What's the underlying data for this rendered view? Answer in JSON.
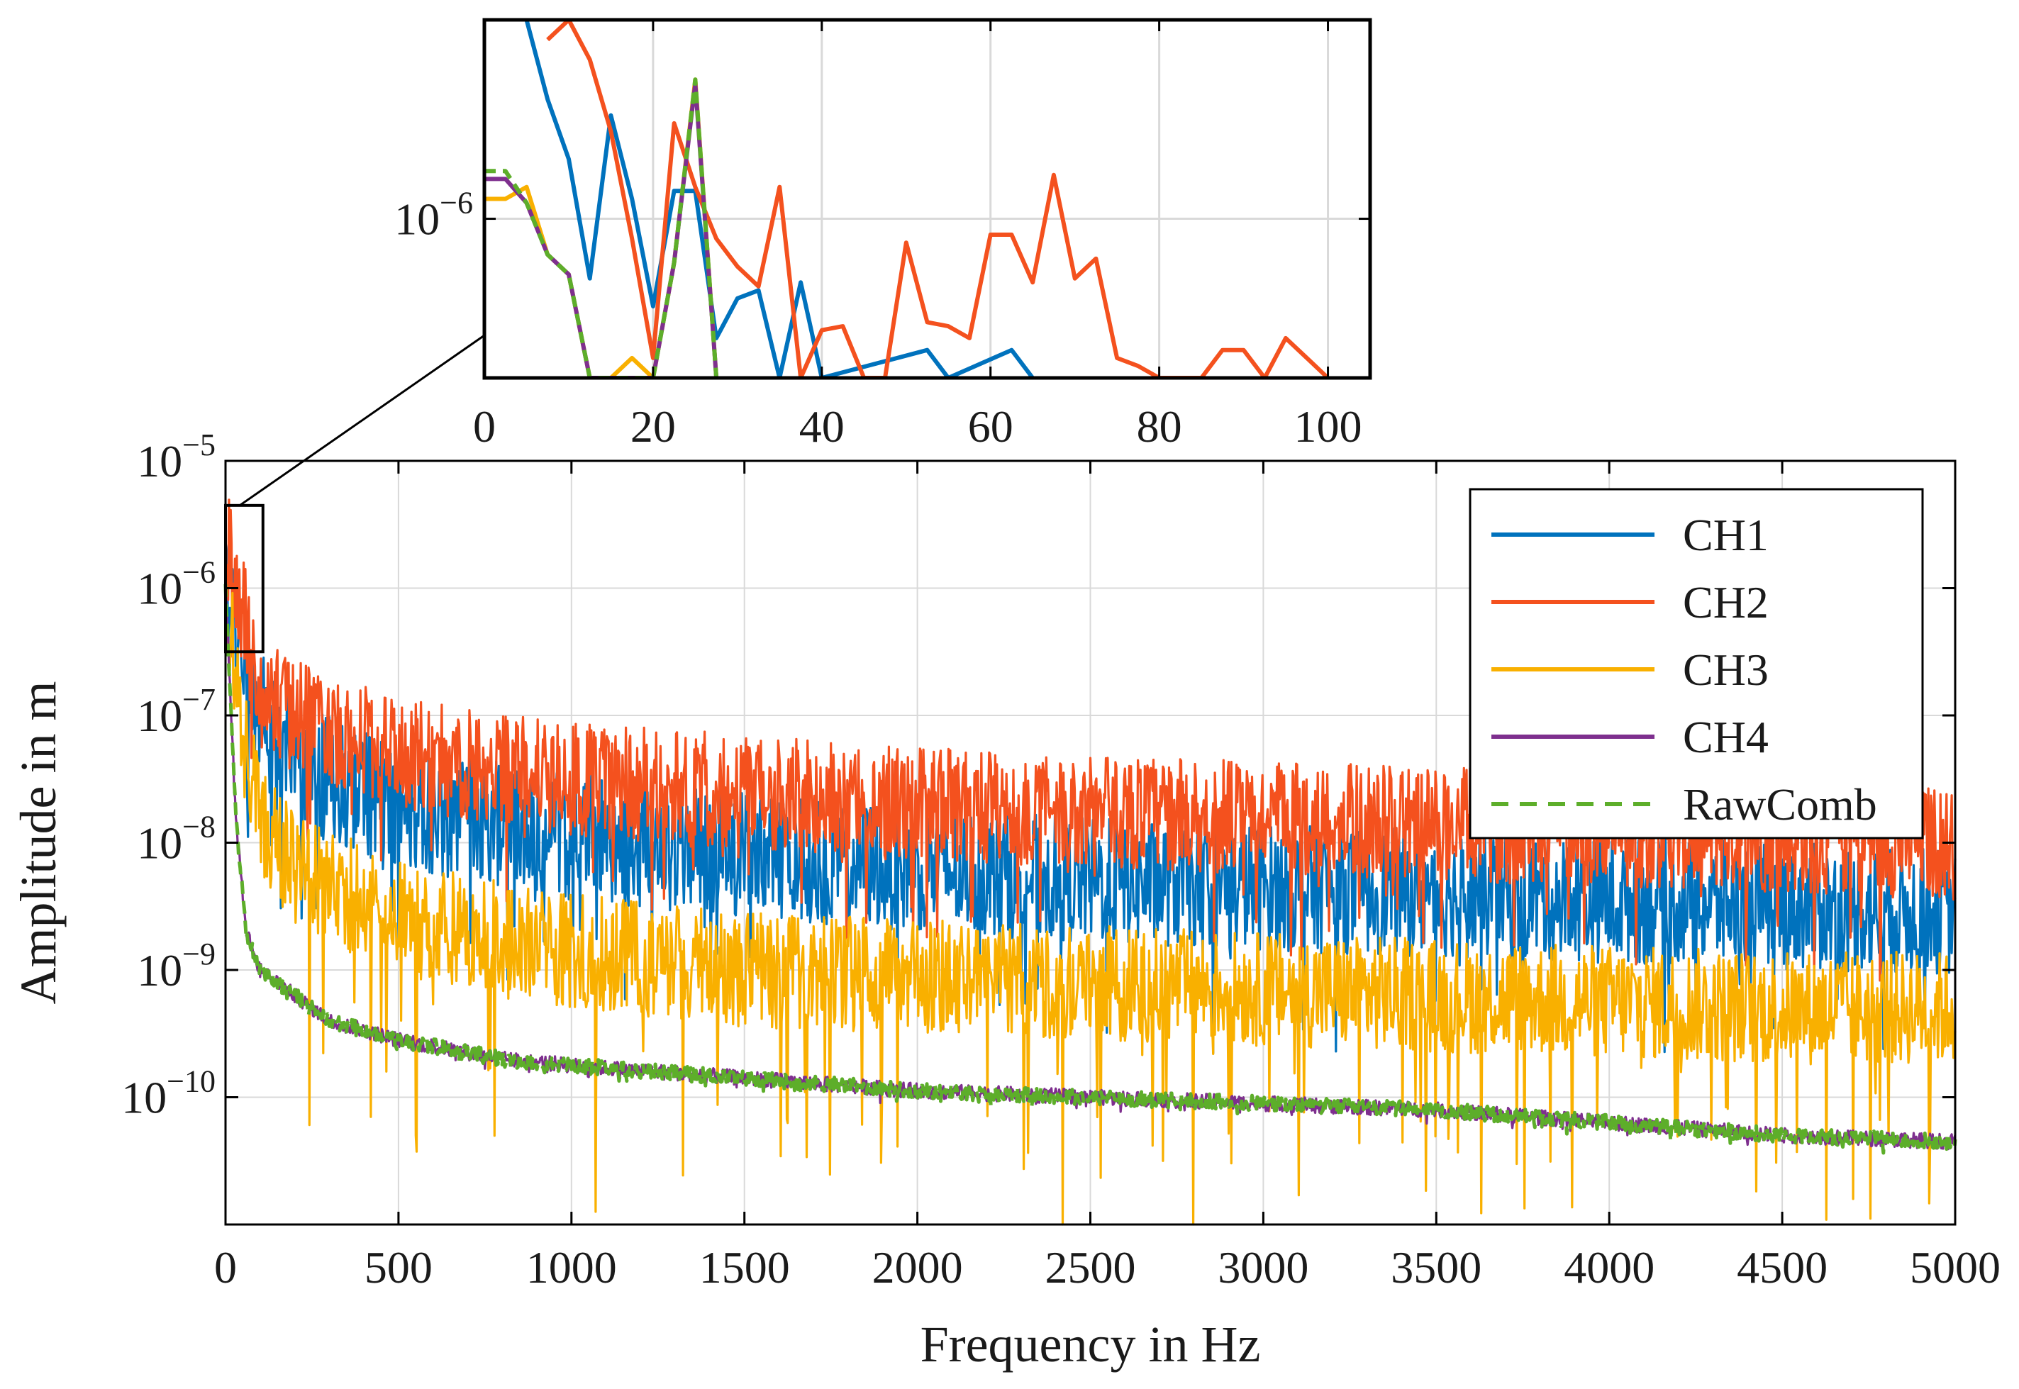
{
  "chart_data": [
    {
      "id": "main",
      "type": "line",
      "xlabel": "Frequency in Hz",
      "ylabel": "Amplitude in m",
      "xlim": [
        0,
        5000
      ],
      "ylim_log10": [
        -11,
        -5
      ],
      "yscale": "log",
      "grid": true,
      "x_ticks": [
        "0",
        "500",
        "1000",
        "1500",
        "2000",
        "2500",
        "3000",
        "3500",
        "4000",
        "4500",
        "5000"
      ],
      "x_tick_values": [
        0,
        500,
        1000,
        1500,
        2000,
        2500,
        3000,
        3500,
        4000,
        4500,
        5000
      ],
      "y_ticks": [
        {
          "value": -5,
          "base": "10",
          "exp": "−5"
        },
        {
          "value": -6,
          "base": "10",
          "exp": "−6"
        },
        {
          "value": -7,
          "base": "10",
          "exp": "−7"
        },
        {
          "value": -8,
          "base": "10",
          "exp": "−8"
        },
        {
          "value": -9,
          "base": "10",
          "exp": "−9"
        },
        {
          "value": -10,
          "base": "10",
          "exp": "−10"
        }
      ],
      "legend_position": "top-right",
      "series": [
        {
          "name": "CH1",
          "label": "CH1",
          "color": "#0072BD",
          "dash": "solid",
          "trend": {
            "x": [
              0,
              50,
              100,
              200,
              500,
              1000,
              1500,
              2000,
              2500,
              3000,
              3500,
              4000,
              4500,
              5000
            ],
            "log10": [
              -6.0,
              -6.6,
              -7.0,
              -7.4,
              -7.7,
              -7.95,
              -8.1,
              -8.2,
              -8.3,
              -8.35,
              -8.4,
              -8.45,
              -8.5,
              -8.55
            ]
          },
          "noise": 0.5,
          "dips": 0.3
        },
        {
          "name": "CH2",
          "label": "CH2",
          "color": "#F4511E",
          "dash": "solid",
          "trend": {
            "x": [
              0,
              50,
              100,
              200,
              500,
              1000,
              1500,
              2000,
              2500,
              3000,
              3500,
              4000,
              4500,
              5000
            ],
            "log10": [
              -5.6,
              -6.2,
              -6.8,
              -7.0,
              -7.3,
              -7.5,
              -7.6,
              -7.7,
              -7.75,
              -7.8,
              -7.85,
              -7.9,
              -7.95,
              -8.0
            ]
          },
          "noise": 0.45,
          "dips": 0.3
        },
        {
          "name": "CH3",
          "label": "CH3",
          "color": "#F9B000",
          "dash": "solid",
          "trend": {
            "x": [
              0,
              50,
              100,
              200,
              500,
              1000,
              1500,
              2000,
              2500,
              3000,
              3500,
              4000,
              4500,
              5000
            ],
            "log10": [
              -6.0,
              -7.2,
              -7.8,
              -8.2,
              -8.6,
              -8.85,
              -9.0,
              -9.05,
              -9.1,
              -9.15,
              -9.2,
              -9.25,
              -9.3,
              -9.3
            ]
          },
          "noise": 0.45,
          "dips": 0.55,
          "spikes": [
            {
              "x": 550,
              "log10": -10.3
            },
            {
              "x": 1070,
              "log10": -10.9
            },
            {
              "x": 2420,
              "log10": -11.0
            },
            {
              "x": 2710,
              "log10": -10.5
            }
          ]
        },
        {
          "name": "CH4",
          "label": "CH4",
          "color": "#7E2F8E",
          "dash": "solid",
          "trend": {
            "x": [
              0,
              30,
              60,
              100,
              200,
              300,
              500,
              800,
              1000,
              1500,
              2000,
              2500,
              3000,
              3500,
              4000,
              4500,
              5000
            ],
            "log10": [
              -6.0,
              -7.8,
              -8.7,
              -9.0,
              -9.2,
              -9.4,
              -9.55,
              -9.7,
              -9.75,
              -9.85,
              -9.95,
              -10.0,
              -10.05,
              -10.1,
              -10.2,
              -10.3,
              -10.35
            ]
          },
          "noise": 0.06,
          "dips": 0.02
        },
        {
          "name": "RawComb",
          "label": "RawComb",
          "color": "#5DAE2A",
          "dash": "dashed",
          "trend": {
            "x": [
              0,
              30,
              60,
              100,
              200,
              300,
              500,
              800,
              1000,
              1500,
              2000,
              2500,
              3000,
              3500,
              4000,
              4500,
              5000
            ],
            "log10": [
              -6.0,
              -7.8,
              -8.7,
              -9.0,
              -9.2,
              -9.4,
              -9.55,
              -9.7,
              -9.75,
              -9.85,
              -9.95,
              -10.0,
              -10.05,
              -10.1,
              -10.2,
              -10.3,
              -10.35
            ]
          },
          "noise": 0.06,
          "dips": 0.02
        }
      ],
      "zoom_box": {
        "x": [
          0,
          100
        ],
        "log10": [
          -6.5,
          -5.35
        ]
      }
    },
    {
      "id": "inset",
      "type": "line",
      "xlabel": "",
      "ylabel": "",
      "xlim": [
        0,
        105
      ],
      "ylim_log10": [
        -6.4,
        -5.5
      ],
      "yscale": "log",
      "grid": true,
      "x_ticks": [
        "0",
        "20",
        "40",
        "60",
        "80",
        "100"
      ],
      "x_tick_values": [
        0,
        20,
        40,
        60,
        80,
        100
      ],
      "y_ticks": [
        {
          "value": -6,
          "base": "10",
          "exp": "−6"
        }
      ],
      "series": [
        {
          "name": "CH1",
          "color": "#0072BD",
          "dash": "solid",
          "x": [
            5,
            7.5,
            10,
            12.5,
            15,
            17.5,
            20,
            22.5,
            25,
            27.5,
            30,
            32.5,
            35,
            37.5,
            40,
            52.5,
            55,
            62.5,
            65
          ],
          "log10": [
            -5.5,
            -5.7,
            -5.85,
            -6.15,
            -5.74,
            -5.95,
            -6.22,
            -5.93,
            -5.93,
            -6.3,
            -6.2,
            -6.18,
            -6.4,
            -6.16,
            -6.4,
            -6.33,
            -6.4,
            -6.33,
            -6.4
          ]
        },
        {
          "name": "CH2",
          "color": "#F4511E",
          "dash": "solid",
          "x": [
            7.5,
            10,
            12.5,
            15,
            17.5,
            20,
            22.5,
            25,
            27.5,
            30,
            32.5,
            35,
            37.5,
            40,
            42.5,
            45,
            47.5,
            50,
            52.5,
            55,
            57.5,
            60,
            62.5,
            65,
            67.5,
            70,
            72.5,
            75,
            77.5,
            80,
            82.5,
            85,
            87.5,
            90,
            92.5,
            95,
            97.5,
            100
          ],
          "log10": [
            -5.55,
            -5.5,
            -5.6,
            -5.78,
            -6.05,
            -6.35,
            -5.76,
            -5.92,
            -6.05,
            -6.12,
            -6.17,
            -5.92,
            -6.4,
            -6.28,
            -6.27,
            -6.4,
            -6.4,
            -6.06,
            -6.26,
            -6.27,
            -6.3,
            -6.04,
            -6.04,
            -6.16,
            -5.89,
            -6.15,
            -6.1,
            -6.35,
            -6.37,
            -6.4,
            -6.4,
            -6.4,
            -6.33,
            -6.33,
            -6.4,
            -6.3,
            -6.35,
            -6.4
          ]
        },
        {
          "name": "CH3",
          "color": "#F9B000",
          "dash": "solid",
          "x": [
            0,
            2.5,
            5,
            7.5,
            10,
            12.5,
            15,
            17.5,
            20,
            22.5,
            25,
            27.5
          ],
          "log10": [
            -5.95,
            -5.95,
            -5.92,
            -6.09,
            -6.14,
            -6.4,
            -6.4,
            -6.35,
            -6.4,
            -6.11,
            -5.65,
            -6.4
          ]
        },
        {
          "name": "CH4",
          "color": "#7E2F8E",
          "dash": "solid",
          "x": [
            0,
            2.5,
            5,
            7.5,
            10,
            12.5,
            15,
            17.5,
            20,
            22.5,
            25,
            27.5
          ],
          "log10": [
            -5.9,
            -5.9,
            -5.96,
            -6.09,
            -6.14,
            -6.4,
            -6.4,
            -6.4,
            -6.4,
            -6.11,
            -5.66,
            -6.4
          ]
        },
        {
          "name": "RawComb",
          "color": "#5DAE2A",
          "dash": "dashed",
          "x": [
            0,
            2.5,
            5,
            7.5,
            10,
            12.5,
            15,
            17.5,
            20,
            22.5,
            25,
            27.5
          ],
          "log10": [
            -5.88,
            -5.88,
            -5.96,
            -6.09,
            -6.14,
            -6.4,
            -6.4,
            -6.4,
            -6.4,
            -6.11,
            -5.65,
            -6.4
          ]
        }
      ]
    }
  ]
}
